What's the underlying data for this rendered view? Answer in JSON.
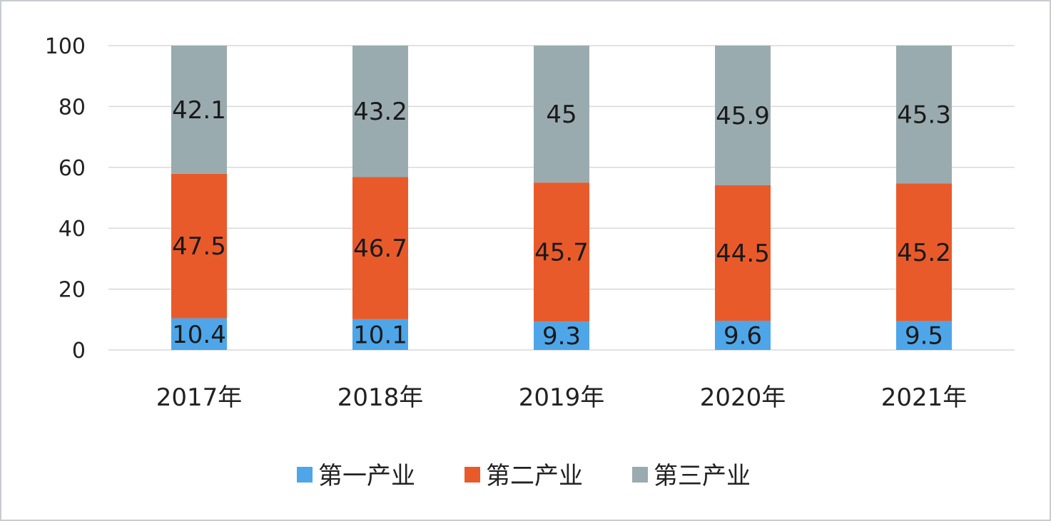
{
  "chart_data": {
    "type": "bar",
    "stacked": true,
    "categories": [
      "2017年",
      "2018年",
      "2019年",
      "2020年",
      "2021年"
    ],
    "series": [
      {
        "name": "第一产业",
        "color": "#4ea6e8",
        "values": [
          10.4,
          10.1,
          9.3,
          9.6,
          9.5
        ]
      },
      {
        "name": "第二产业",
        "color": "#e95a2b",
        "values": [
          47.5,
          46.7,
          45.7,
          44.5,
          45.2
        ]
      },
      {
        "name": "第三产业",
        "color": "#9aabaf",
        "values": [
          42.1,
          43.2,
          45,
          45.9,
          45.3
        ]
      }
    ],
    "data_labels": [
      [
        "10.4",
        "10.1",
        "9.3",
        "9.6",
        "9.5"
      ],
      [
        "47.5",
        "46.7",
        "45.7",
        "44.5",
        "45.2"
      ],
      [
        "42.1",
        "43.2",
        "45",
        "45.9",
        "45.3"
      ]
    ],
    "yticks": [
      "0",
      "20",
      "40",
      "60",
      "80",
      "100"
    ],
    "ylim": [
      0,
      100
    ],
    "grid": true,
    "legend": "bottom",
    "title": "",
    "xlabel": "",
    "ylabel": ""
  }
}
